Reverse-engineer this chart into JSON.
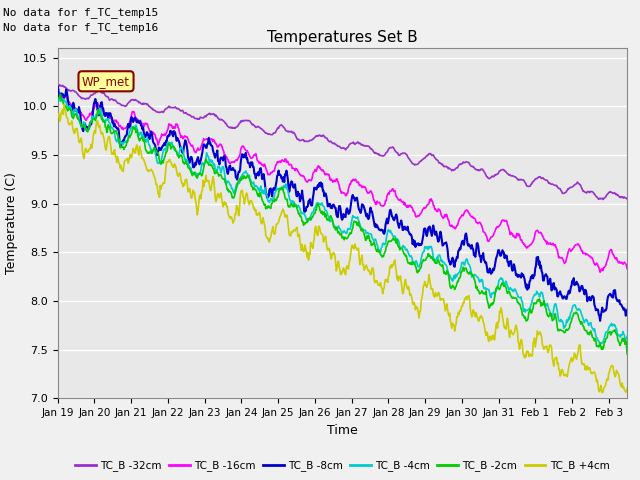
{
  "title": "Temperatures Set B",
  "xlabel": "Time",
  "ylabel": "Temperature (C)",
  "annotations": [
    "No data for f_TC_temp15",
    "No data for f_TC_temp16"
  ],
  "wp_label": "WP_met",
  "ylim": [
    7.0,
    10.6
  ],
  "yticks": [
    7.0,
    7.5,
    8.0,
    8.5,
    9.0,
    9.5,
    10.0,
    10.5
  ],
  "xlim_days": [
    0,
    15.5
  ],
  "x_tick_labels": [
    "Jan 19",
    "Jan 20",
    "Jan 21",
    "Jan 22",
    "Jan 23",
    "Jan 24",
    "Jan 25",
    "Jan 26",
    "Jan 27",
    "Jan 28",
    "Jan 29",
    "Jan 30",
    "Jan 31",
    "Feb 1",
    "Feb 2",
    "Feb 3"
  ],
  "series": [
    {
      "label": "TC_B -32cm",
      "color": "#9932CC",
      "lw": 1.2
    },
    {
      "label": "TC_B -16cm",
      "color": "#FF00FF",
      "lw": 1.2
    },
    {
      "label": "TC_B -8cm",
      "color": "#0000CD",
      "lw": 1.5
    },
    {
      "label": "TC_B -4cm",
      "color": "#00CCCC",
      "lw": 1.2
    },
    {
      "label": "TC_B -2cm",
      "color": "#00CC00",
      "lw": 1.2
    },
    {
      "label": "TC_B +4cm",
      "color": "#CCCC00",
      "lw": 1.2
    }
  ],
  "background_color": "#f0f0f0",
  "plot_bg_color": "#e8e8e8",
  "figsize": [
    6.4,
    4.8
  ],
  "dpi": 100
}
